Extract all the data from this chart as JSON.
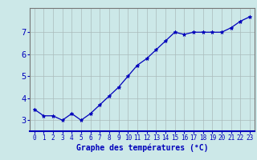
{
  "x": [
    0,
    1,
    2,
    3,
    4,
    5,
    6,
    7,
    8,
    9,
    10,
    11,
    12,
    13,
    14,
    15,
    16,
    17,
    18,
    19,
    20,
    21,
    22,
    23
  ],
  "y": [
    3.5,
    3.2,
    3.2,
    3.0,
    3.3,
    3.0,
    3.3,
    3.7,
    4.1,
    4.5,
    5.0,
    5.5,
    5.8,
    6.2,
    6.6,
    7.0,
    6.9,
    7.0,
    7.0,
    7.0,
    7.0,
    7.2,
    7.5,
    7.7
  ],
  "line_color": "#0000bb",
  "marker": "*",
  "marker_size": 3.5,
  "bg_color": "#cce8e8",
  "grid_color": "#aabbbb",
  "xlabel": "Graphe des températures (°C)",
  "xlabel_color": "#0000bb",
  "xlabel_fontsize": 7,
  "tick_color": "#0000bb",
  "tick_fontsize": 5.5,
  "ytick_fontsize": 7.5,
  "yticks": [
    3,
    4,
    5,
    6,
    7
  ],
  "ylim": [
    2.5,
    8.1
  ],
  "xlim": [
    -0.5,
    23.5
  ]
}
